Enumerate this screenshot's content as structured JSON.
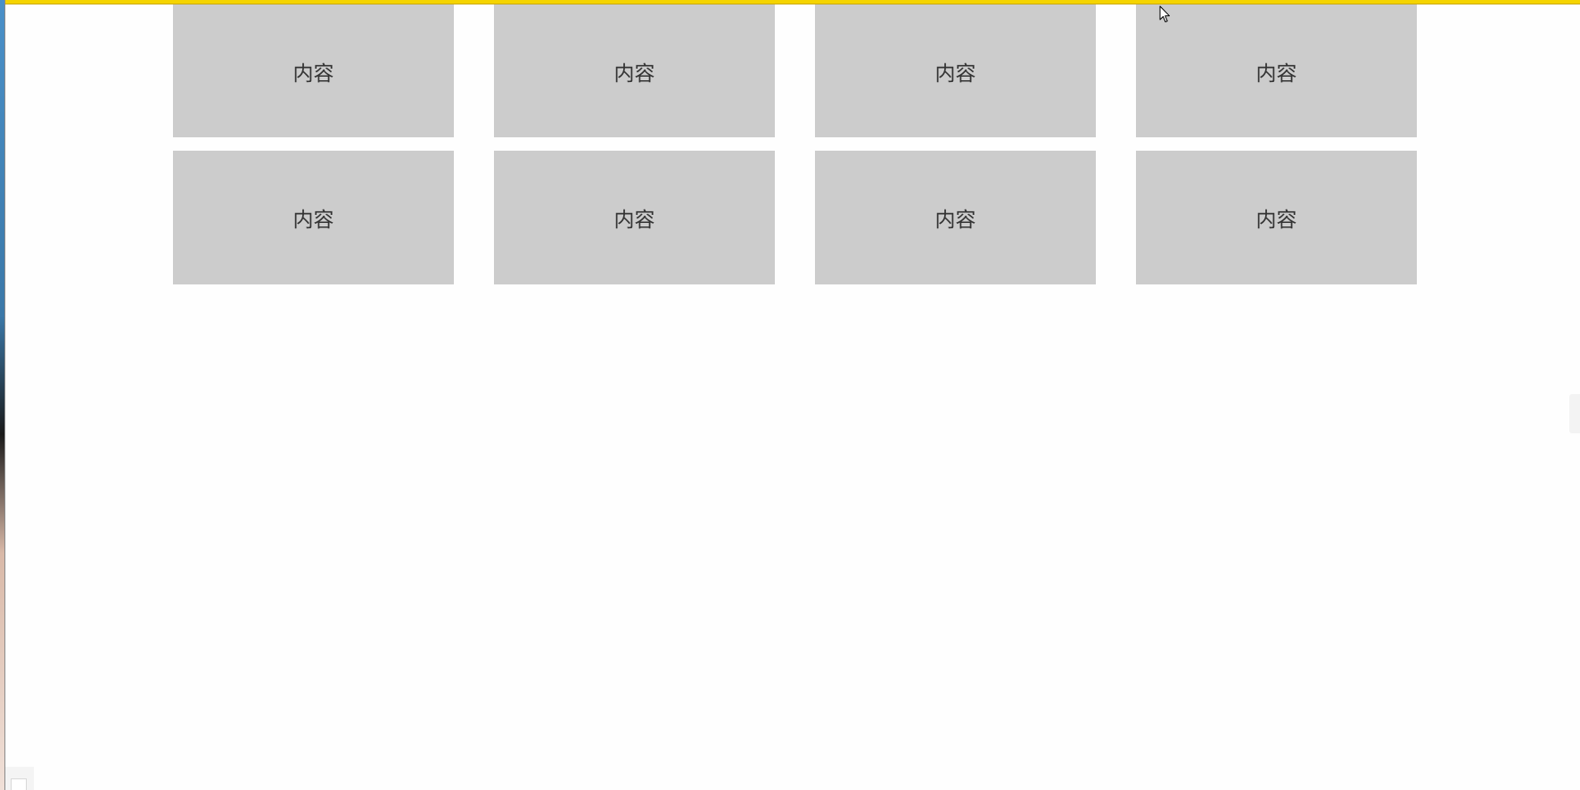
{
  "cards": [
    {
      "label": "内容"
    },
    {
      "label": "内容"
    },
    {
      "label": "内容"
    },
    {
      "label": "内容"
    },
    {
      "label": "内容"
    },
    {
      "label": "内容"
    },
    {
      "label": "内容"
    },
    {
      "label": "内容"
    }
  ],
  "colors": {
    "top_bar": "#f5d400",
    "card_background": "#cccccc",
    "card_text": "#333333",
    "page_background": "#fefefe"
  },
  "icons": {
    "cursor": "mouse-pointer-icon"
  }
}
